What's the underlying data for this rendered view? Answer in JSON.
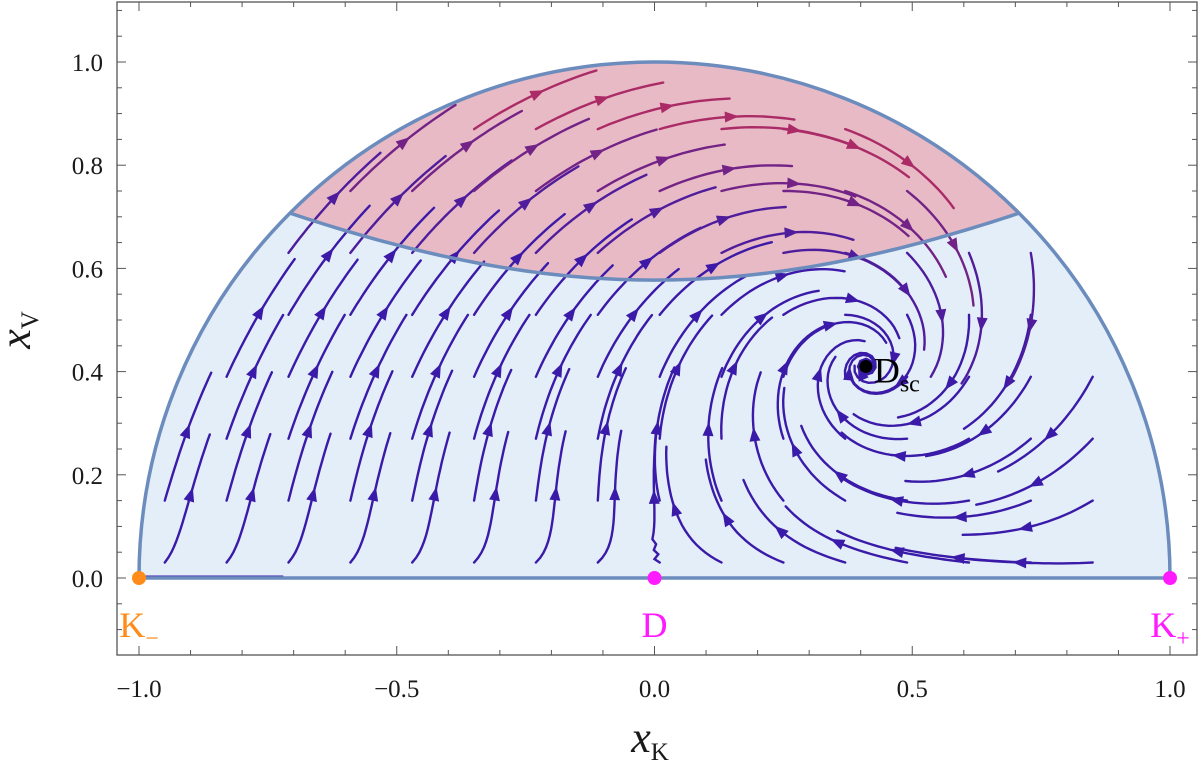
{
  "chart_data": {
    "type": "streamplot",
    "title": "",
    "xlabel": {
      "base": "x",
      "sub": "K"
    },
    "ylabel": {
      "base": "x",
      "sub": "V"
    },
    "xlim": [
      -1.07,
      1.07
    ],
    "ylim": [
      -0.15,
      1.12
    ],
    "x_ticks": [
      {
        "value": -1.0,
        "label": "−1.0"
      },
      {
        "value": -0.5,
        "label": "−0.5"
      },
      {
        "value": 0.0,
        "label": "0.0"
      },
      {
        "value": 0.5,
        "label": "0.5"
      },
      {
        "value": 1.0,
        "label": "1.0"
      }
    ],
    "y_ticks": [
      {
        "value": 0.0,
        "label": "0.0"
      },
      {
        "value": 0.2,
        "label": "0.2"
      },
      {
        "value": 0.4,
        "label": "0.4"
      },
      {
        "value": 0.6,
        "label": "0.6"
      },
      {
        "value": 0.8,
        "label": "0.8"
      },
      {
        "value": 1.0,
        "label": "1.0"
      }
    ],
    "regions": {
      "domain": "upper unit half-disk x_K^2 + x_V^2 <= 1, x_V >= 0",
      "accelerating_region_boundary": "x_V = sqrt((1 + x_K^2) / 3)",
      "domain_fill": "#e4eef9",
      "accelerating_fill": "#e8bac6",
      "boundary_color": "#6b8cbd"
    },
    "critical_points": [
      {
        "name": "K−",
        "base": "K",
        "sub": "−",
        "x": -1.0,
        "y": 0.0,
        "color": "#ff8c1a"
      },
      {
        "name": "D",
        "base": "D",
        "sub": "",
        "x": 0.0,
        "y": 0.0,
        "color": "#ff1aff"
      },
      {
        "name": "K+",
        "base": "K",
        "sub": "+",
        "x": 1.0,
        "y": 0.0,
        "color": "#ff1aff"
      },
      {
        "name": "Dsc",
        "base": "D",
        "sub": "sc",
        "x": 0.41,
        "y": 0.41,
        "color": "#000000"
      }
    ],
    "streamline_colors": {
      "fast": "#d9324a",
      "slow": "#3a1aa8"
    }
  }
}
